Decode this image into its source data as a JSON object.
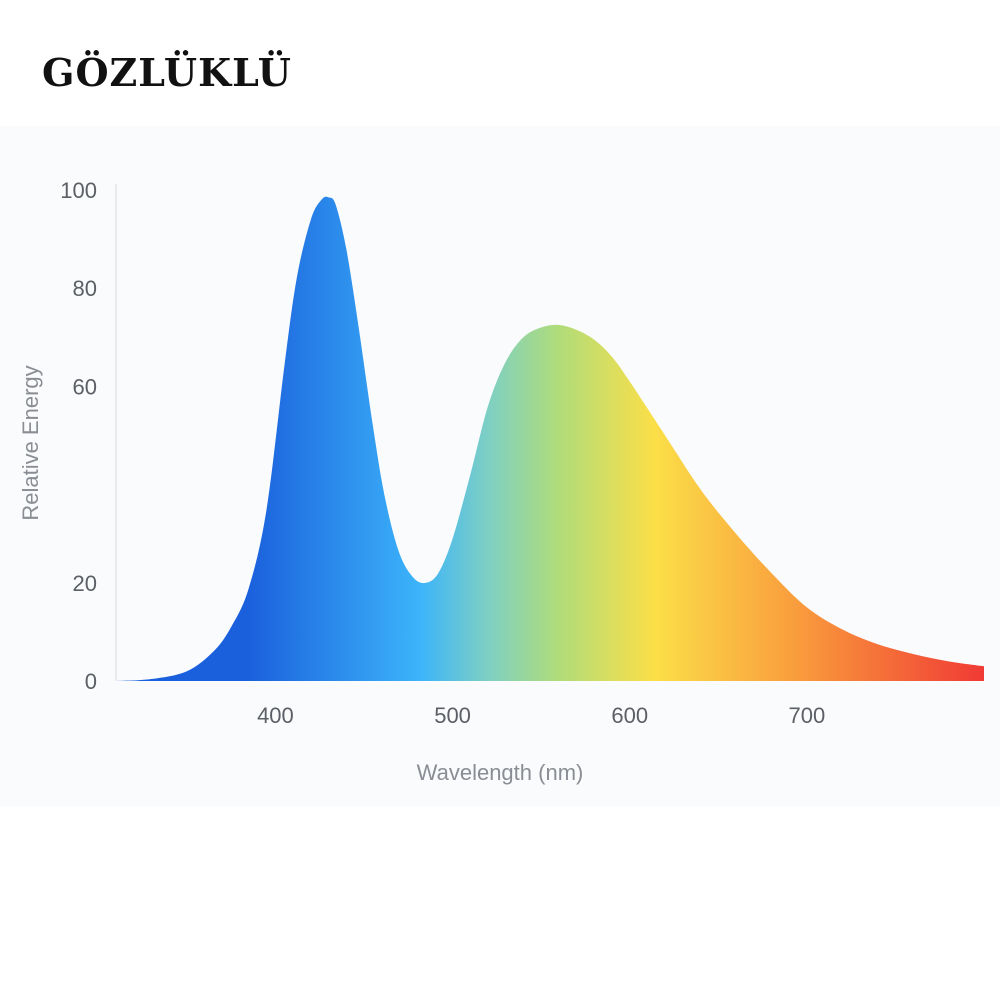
{
  "brand": {
    "title": "GÖZLÜKLÜ"
  },
  "chart_data": {
    "type": "area",
    "title": "",
    "xlabel": "Wavelength (nm)",
    "ylabel": "Relative Energy",
    "xlim": [
      310,
      800
    ],
    "ylim": [
      0,
      100
    ],
    "x_ticks": [
      400,
      500,
      600,
      700
    ],
    "y_ticks": [
      0,
      20,
      60,
      80,
      100
    ],
    "grid": false,
    "legend": "none",
    "fill": "visible-spectrum gradient",
    "colors": {
      "blue": "#1a5fdc",
      "sky": "#3cb4fa",
      "teal": "#7fd0c2",
      "green": "#b0dc7a",
      "yellow": "#fbdf48",
      "orange": "#f99a3c",
      "red": "#f03a35",
      "axis": "#e3e6ea",
      "text": "#5c5f66"
    },
    "series": [
      {
        "x": [
          310,
          330,
          350,
          365,
          375,
          385,
          395,
          405,
          412,
          420,
          426,
          430,
          434,
          440,
          447,
          455,
          462,
          470,
          478,
          485,
          492,
          500,
          510,
          520,
          530,
          540,
          550,
          560,
          570,
          580,
          590,
          600,
          620,
          640,
          660,
          680,
          700,
          720,
          740,
          760,
          780,
          800
        ],
        "y": [
          0,
          0.4,
          2,
          6,
          11,
          19,
          35,
          64,
          82,
          94,
          98,
          98.5,
          97,
          88,
          72,
          52,
          37,
          26,
          21,
          20,
          22,
          29,
          42,
          56,
          65,
          70,
          72,
          72.5,
          71.5,
          69.5,
          66,
          61,
          50,
          39,
          30,
          22,
          15,
          10.5,
          7.5,
          5.5,
          4,
          3
        ]
      }
    ]
  }
}
